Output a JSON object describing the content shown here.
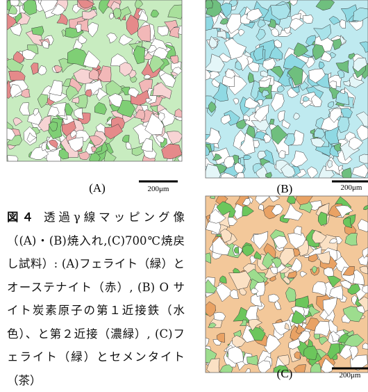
{
  "panels": [
    {
      "label": "(A)",
      "scale": "200μm"
    },
    {
      "label": "(B)",
      "scale": "200μm"
    },
    {
      "label": "(C)",
      "scale": "200μm"
    }
  ],
  "caption": {
    "number": "図４",
    "text": "透過γ線マッピング像（(A)・(B)焼入れ,(C)700℃焼戻し試料）: (A)フェライト（緑）とオーステナイト（赤）, (B) O サイト炭素原子の第１近接鉄（水色）、と第２近接（濃緑）, (C)フェライト（緑）とセメンタイト（茶）"
  }
}
